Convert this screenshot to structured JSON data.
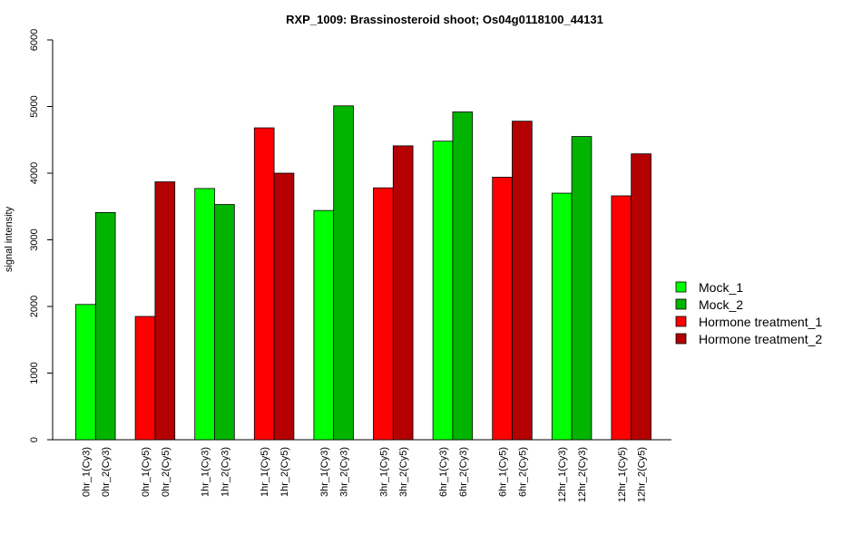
{
  "chart_data": {
    "type": "bar",
    "title": "RXP_1009: Brassinosteroid shoot; Os04g0118100_44131",
    "xlabel": "",
    "ylabel": "signal intensity",
    "ylim": [
      0,
      6000
    ],
    "yticks": [
      0,
      1000,
      2000,
      3000,
      4000,
      5000,
      6000
    ],
    "grid": false,
    "legend_position": "right",
    "legend": [
      {
        "name": "Mock_1",
        "color": "#00ff00"
      },
      {
        "name": "Mock_2",
        "color": "#00b400"
      },
      {
        "name": "Hormone treatment_1",
        "color": "#ff0000"
      },
      {
        "name": "Hormone treatment_2",
        "color": "#b40000"
      }
    ],
    "groups": [
      {
        "bars": [
          {
            "label": "0hr_1(Cy3)",
            "value": 2030,
            "color": "#00ff00"
          },
          {
            "label": "0hr_2(Cy3)",
            "value": 3410,
            "color": "#00b400"
          }
        ]
      },
      {
        "bars": [
          {
            "label": "0hr_1(Cy5)",
            "value": 1850,
            "color": "#ff0000"
          },
          {
            "label": "0hr_2(Cy5)",
            "value": 3870,
            "color": "#b40000"
          }
        ]
      },
      {
        "bars": [
          {
            "label": "1hr_1(Cy3)",
            "value": 3770,
            "color": "#00ff00"
          },
          {
            "label": "1hr_2(Cy3)",
            "value": 3530,
            "color": "#00b400"
          }
        ]
      },
      {
        "bars": [
          {
            "label": "1hr_1(Cy5)",
            "value": 4680,
            "color": "#ff0000"
          },
          {
            "label": "1hr_2(Cy5)",
            "value": 4000,
            "color": "#b40000"
          }
        ]
      },
      {
        "bars": [
          {
            "label": "3hr_1(Cy3)",
            "value": 3440,
            "color": "#00ff00"
          },
          {
            "label": "3hr_2(Cy3)",
            "value": 5010,
            "color": "#00b400"
          }
        ]
      },
      {
        "bars": [
          {
            "label": "3hr_1(Cy5)",
            "value": 3780,
            "color": "#ff0000"
          },
          {
            "label": "3hr_2(Cy5)",
            "value": 4410,
            "color": "#b40000"
          }
        ]
      },
      {
        "bars": [
          {
            "label": "6hr_1(Cy3)",
            "value": 4480,
            "color": "#00ff00"
          },
          {
            "label": "6hr_2(Cy3)",
            "value": 4920,
            "color": "#00b400"
          }
        ]
      },
      {
        "bars": [
          {
            "label": "6hr_1(Cy5)",
            "value": 3940,
            "color": "#ff0000"
          },
          {
            "label": "6hr_2(Cy5)",
            "value": 4780,
            "color": "#b40000"
          }
        ]
      },
      {
        "bars": [
          {
            "label": "12hr_1(Cy3)",
            "value": 3700,
            "color": "#00ff00"
          },
          {
            "label": "12hr_2(Cy3)",
            "value": 4550,
            "color": "#00b400"
          }
        ]
      },
      {
        "bars": [
          {
            "label": "12hr_1(Cy5)",
            "value": 3660,
            "color": "#ff0000"
          },
          {
            "label": "12hr_2(Cy5)",
            "value": 4290,
            "color": "#b40000"
          }
        ]
      }
    ]
  }
}
